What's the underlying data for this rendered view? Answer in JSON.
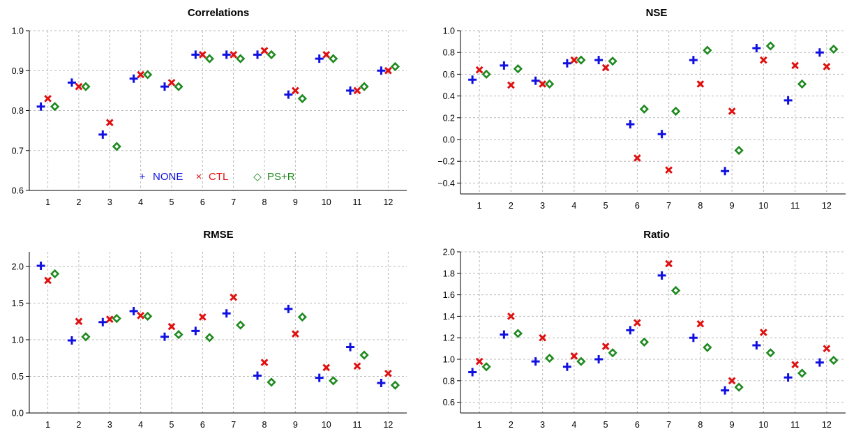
{
  "colors": {
    "NONE": "#1010e0",
    "CTL": "#e01010",
    "PS+R": "#1f8a1f",
    "grid": "#b8b8b8",
    "axis": "#000000"
  },
  "chart_data": [
    {
      "type": "scatter",
      "title": "Correlations",
      "xlabel": "",
      "ylabel": "",
      "x": [
        1,
        2,
        3,
        4,
        5,
        6,
        7,
        8,
        9,
        10,
        11,
        12
      ],
      "ylim": [
        0.6,
        1.0
      ],
      "yticks": [
        "0.6",
        "0.7",
        "0.8",
        "0.9",
        "1.0"
      ],
      "xticks": [
        "1",
        "2",
        "3",
        "4",
        "5",
        "6",
        "7",
        "8",
        "9",
        "10",
        "11",
        "12"
      ],
      "grid": true,
      "legend": {
        "placement": "bottom-center",
        "entries": [
          {
            "symbol": "+",
            "label": "NONE"
          },
          {
            "symbol": "×",
            "label": "CTL"
          },
          {
            "symbol": "◇",
            "label": "PS+R"
          }
        ]
      },
      "series": [
        {
          "name": "NONE",
          "marker": "plus",
          "values": [
            0.81,
            0.87,
            0.74,
            0.88,
            0.86,
            0.94,
            0.94,
            0.94,
            0.84,
            0.93,
            0.85,
            0.9
          ]
        },
        {
          "name": "CTL",
          "marker": "cross",
          "values": [
            0.83,
            0.86,
            0.77,
            0.89,
            0.87,
            0.94,
            0.94,
            0.95,
            0.85,
            0.94,
            0.85,
            0.9
          ]
        },
        {
          "name": "PS+R",
          "marker": "diamond",
          "values": [
            0.81,
            0.86,
            0.71,
            0.89,
            0.86,
            0.93,
            0.93,
            0.94,
            0.83,
            0.93,
            0.86,
            0.91
          ]
        }
      ]
    },
    {
      "type": "scatter",
      "title": "NSE",
      "xlabel": "",
      "ylabel": "",
      "x": [
        1,
        2,
        3,
        4,
        5,
        6,
        7,
        8,
        9,
        10,
        11,
        12
      ],
      "ylim": [
        -0.5,
        1.0
      ],
      "yticks": [
        "−0.4",
        "−0.2",
        "0.0",
        "0.2",
        "0.4",
        "0.6",
        "0.8",
        "1.0"
      ],
      "xticks": [
        "1",
        "2",
        "3",
        "4",
        "5",
        "6",
        "7",
        "8",
        "9",
        "10",
        "11",
        "12"
      ],
      "grid": true,
      "series": [
        {
          "name": "NONE",
          "marker": "plus",
          "values": [
            0.55,
            0.68,
            0.54,
            0.7,
            0.73,
            0.14,
            0.05,
            0.73,
            -0.29,
            0.84,
            0.36,
            0.8
          ]
        },
        {
          "name": "CTL",
          "marker": "cross",
          "values": [
            0.64,
            0.5,
            0.51,
            0.73,
            0.66,
            -0.17,
            -0.28,
            0.51,
            0.26,
            0.73,
            0.68,
            0.67
          ]
        },
        {
          "name": "PS+R",
          "marker": "diamond",
          "values": [
            0.6,
            0.65,
            0.51,
            0.73,
            0.72,
            0.28,
            0.26,
            0.82,
            -0.1,
            0.86,
            0.51,
            0.83
          ]
        }
      ]
    },
    {
      "type": "scatter",
      "title": "RMSE",
      "xlabel": "",
      "ylabel": "",
      "x": [
        1,
        2,
        3,
        4,
        5,
        6,
        7,
        8,
        9,
        10,
        11,
        12
      ],
      "ylim": [
        0.0,
        2.2
      ],
      "yticks": [
        "0.0",
        "0.5",
        "1.0",
        "1.5",
        "2.0"
      ],
      "xticks": [
        "1",
        "2",
        "3",
        "4",
        "5",
        "6",
        "7",
        "8",
        "9",
        "10",
        "11",
        "12"
      ],
      "grid": true,
      "series": [
        {
          "name": "NONE",
          "marker": "plus",
          "values": [
            2.01,
            0.99,
            1.24,
            1.39,
            1.04,
            1.12,
            1.36,
            0.51,
            1.42,
            0.48,
            0.9,
            0.41
          ]
        },
        {
          "name": "CTL",
          "marker": "cross",
          "values": [
            1.81,
            1.25,
            1.28,
            1.33,
            1.18,
            1.31,
            1.58,
            0.69,
            1.08,
            0.62,
            0.64,
            0.54
          ]
        },
        {
          "name": "PS+R",
          "marker": "diamond",
          "values": [
            1.9,
            1.04,
            1.29,
            1.32,
            1.07,
            1.03,
            1.2,
            0.42,
            1.31,
            0.44,
            0.79,
            0.38
          ]
        }
      ]
    },
    {
      "type": "scatter",
      "title": "Ratio",
      "xlabel": "",
      "ylabel": "",
      "x": [
        1,
        2,
        3,
        4,
        5,
        6,
        7,
        8,
        9,
        10,
        11,
        12
      ],
      "ylim": [
        0.5,
        2.0
      ],
      "yticks": [
        "0.6",
        "0.8",
        "1.0",
        "1.2",
        "1.4",
        "1.6",
        "1.8",
        "2.0"
      ],
      "xticks": [
        "1",
        "2",
        "3",
        "4",
        "5",
        "6",
        "7",
        "8",
        "9",
        "10",
        "11",
        "12"
      ],
      "grid": true,
      "series": [
        {
          "name": "NONE",
          "marker": "plus",
          "values": [
            0.88,
            1.23,
            0.98,
            0.93,
            1.0,
            1.27,
            1.78,
            1.2,
            0.71,
            1.13,
            0.83,
            0.97
          ]
        },
        {
          "name": "CTL",
          "marker": "cross",
          "values": [
            0.98,
            1.4,
            1.2,
            1.03,
            1.12,
            1.34,
            1.89,
            1.33,
            0.8,
            1.25,
            0.95,
            1.1
          ]
        },
        {
          "name": "PS+R",
          "marker": "diamond",
          "values": [
            0.93,
            1.24,
            1.01,
            0.98,
            1.06,
            1.16,
            1.64,
            1.11,
            0.74,
            1.06,
            0.87,
            0.99
          ]
        }
      ]
    }
  ]
}
